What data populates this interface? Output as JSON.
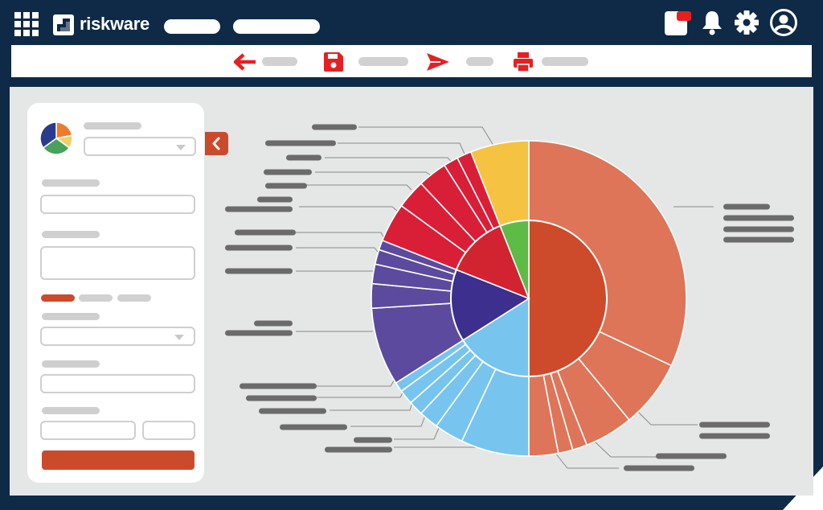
{
  "app": {
    "brand": "riskware"
  },
  "colors": {
    "navy": "#0e2a47",
    "canvas": "#e5e6e6",
    "accent": "#cc4a2c",
    "red_icon": "#e62020",
    "placeholder": "#d1d1d1",
    "leader_label": "#6b6b6b"
  },
  "header": {
    "icons": [
      "app-grid-icon",
      "notification-badge-icon",
      "bell-icon",
      "gear-icon",
      "user-profile-icon"
    ]
  },
  "toolbar": {
    "icons": [
      "back-arrow-icon",
      "save-icon",
      "send-icon",
      "print-icon"
    ]
  },
  "sidebar": {
    "collapse_icon": "chevron-left-icon",
    "tabs": [
      "active",
      "inactive",
      "inactive"
    ]
  },
  "chart_data": {
    "type": "sunburst",
    "inner": [
      {
        "name": "",
        "value": 50,
        "color": "#cd4a2b"
      },
      {
        "name": "",
        "value": 16,
        "color": "#77c5ef"
      },
      {
        "name": "",
        "value": 15,
        "color": "#3c2f8e"
      },
      {
        "name": "",
        "value": 13,
        "color": "#d12430"
      },
      {
        "name": "",
        "value": 6,
        "color": "#5dbb46"
      }
    ],
    "outer": [
      {
        "value": 32,
        "color": "#de7558",
        "parent": 0
      },
      {
        "value": 7,
        "color": "#de7558",
        "parent": 0
      },
      {
        "value": 5,
        "color": "#de7558",
        "parent": 0
      },
      {
        "value": 1.5,
        "color": "#de7558",
        "parent": 0
      },
      {
        "value": 1.5,
        "color": "#de7558",
        "parent": 0
      },
      {
        "value": 3,
        "color": "#de7558",
        "parent": 0
      },
      {
        "value": 7,
        "color": "#77c5ef",
        "parent": 1
      },
      {
        "value": 3,
        "color": "#77c5ef",
        "parent": 1
      },
      {
        "value": 2,
        "color": "#77c5ef",
        "parent": 1
      },
      {
        "value": 1.5,
        "color": "#77c5ef",
        "parent": 1
      },
      {
        "value": 1.5,
        "color": "#77c5ef",
        "parent": 1
      },
      {
        "value": 1,
        "color": "#77c5ef",
        "parent": 1
      },
      {
        "value": 8,
        "color": "#5b4a9e",
        "parent": 2
      },
      {
        "value": 2.5,
        "color": "#5b4a9e",
        "parent": 2
      },
      {
        "value": 2,
        "color": "#5b4a9e",
        "parent": 2
      },
      {
        "value": 1.5,
        "color": "#5b4a9e",
        "parent": 2
      },
      {
        "value": 1,
        "color": "#5b4a9e",
        "parent": 2
      },
      {
        "value": 4,
        "color": "#d91f37",
        "parent": 3
      },
      {
        "value": 3,
        "color": "#d91f37",
        "parent": 3
      },
      {
        "value": 3,
        "color": "#d91f37",
        "parent": 3
      },
      {
        "value": 1.5,
        "color": "#d91f37",
        "parent": 3
      },
      {
        "value": 1.5,
        "color": "#d91f37",
        "parent": 3
      },
      {
        "value": 6,
        "color": "#f5c242",
        "parent": 4
      }
    ]
  }
}
